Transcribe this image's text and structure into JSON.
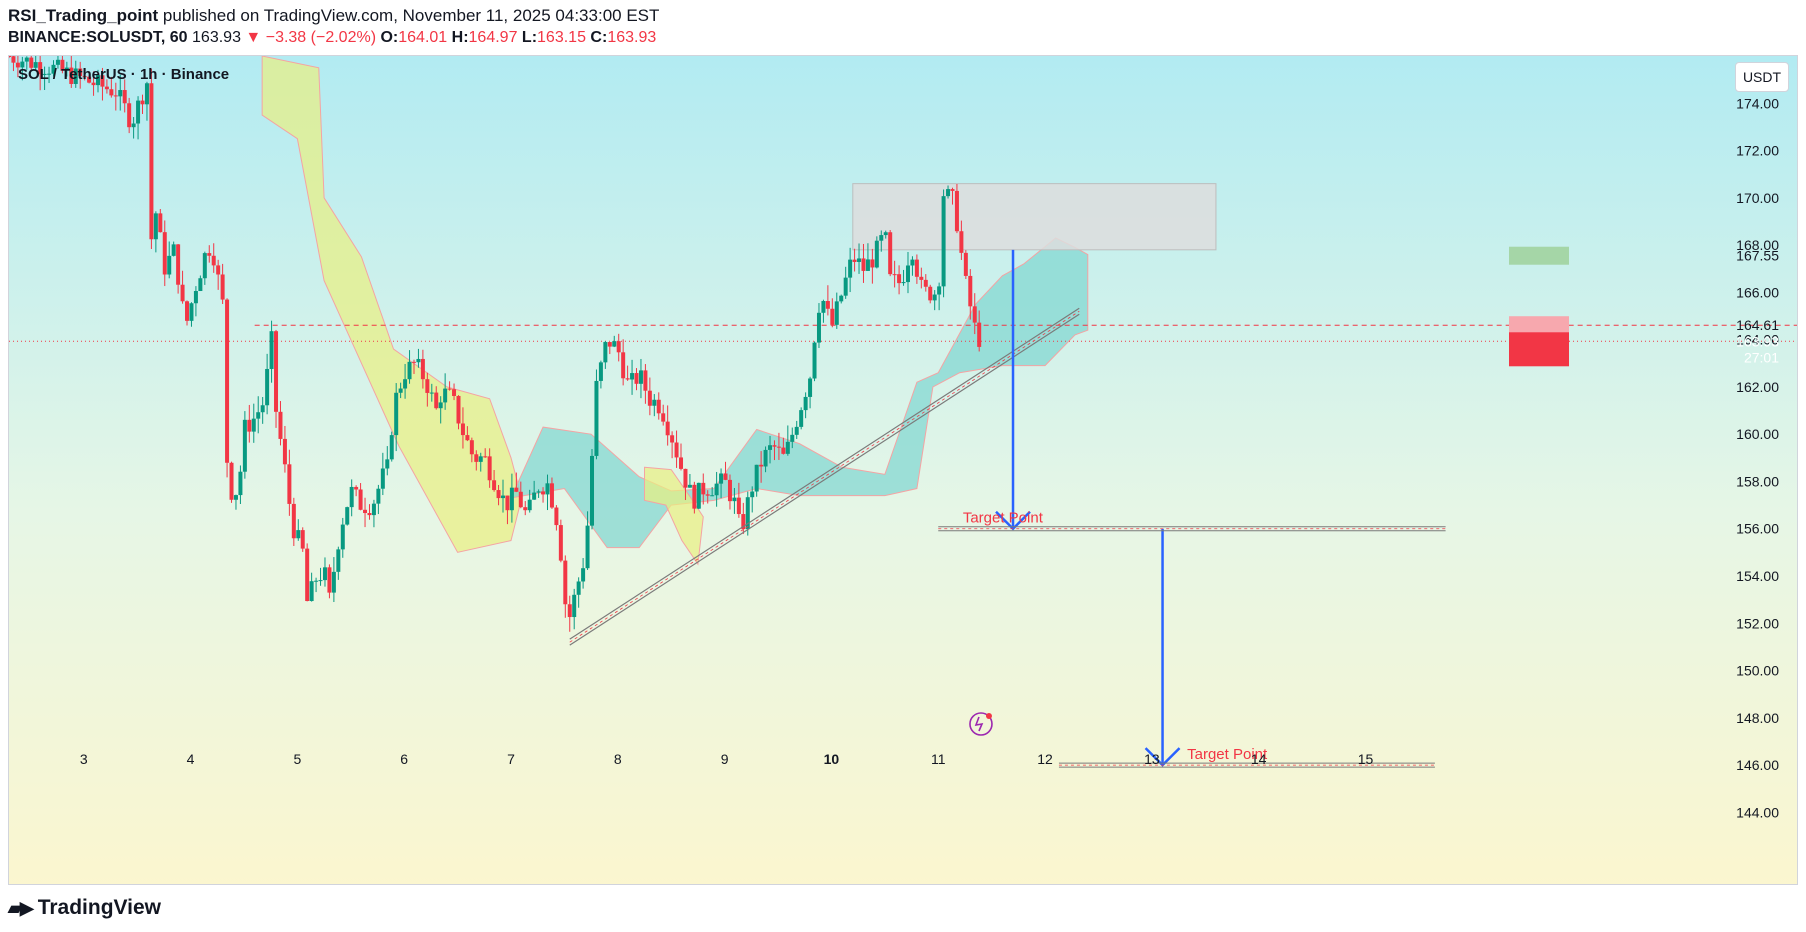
{
  "header": {
    "author": "RSI_Trading_point",
    "published": "published on TradingView.com, November 11, 2025 04:33:00 EST",
    "symbol_line": "BINANCE:SOLUSDT, 60",
    "last": "163.93",
    "change": "−3.38 (−2.02%)",
    "o_label": "O:",
    "o": "164.01",
    "h_label": "H:",
    "h": "164.97",
    "l_label": "L:",
    "l": "163.15",
    "c_label": "C:",
    "c": "163.93"
  },
  "legend": {
    "title": "SOL / TetherUS · 1h · Binance"
  },
  "unit_button": "USDT",
  "footer": {
    "brand": "TradingView"
  },
  "colors": {
    "up": "#089981",
    "down": "#f23645",
    "arrow": "#2962ff",
    "target_text": "#f23645",
    "cloud_bull": "#7fd6d0",
    "cloud_bear": "#e9ef80",
    "price_label_bg": "#f23645",
    "green_label_bg": "#a5d6a7"
  },
  "chart_data": {
    "type": "candlestick",
    "y_range": [
      143,
      176
    ],
    "x_range": [
      2.3,
      16.25
    ],
    "y_ticks": [
      144,
      146,
      148,
      150,
      152,
      154,
      156,
      158,
      160,
      162,
      164,
      166,
      168,
      170,
      172,
      174
    ],
    "x_ticks": [
      {
        "x": 3,
        "label": "3"
      },
      {
        "x": 4,
        "label": "4"
      },
      {
        "x": 5,
        "label": "5"
      },
      {
        "x": 6,
        "label": "6"
      },
      {
        "x": 7,
        "label": "7"
      },
      {
        "x": 8,
        "label": "8"
      },
      {
        "x": 9,
        "label": "9"
      },
      {
        "x": 10,
        "label": "10"
      },
      {
        "x": 11,
        "label": "11"
      },
      {
        "x": 12,
        "label": "12"
      },
      {
        "x": 13,
        "label": "13"
      },
      {
        "x": 14,
        "label": "14"
      },
      {
        "x": 15,
        "label": "15"
      }
    ],
    "price_labels": [
      {
        "value": 167.55,
        "text": "167.55",
        "kind": "green"
      },
      {
        "value": 164.61,
        "text": "164.61",
        "kind": "pink"
      },
      {
        "value": 163.93,
        "text": "163.93",
        "sub": "27:01",
        "kind": "red"
      }
    ],
    "resistance_zone": {
      "x0": 10.2,
      "x1": 13.6,
      "y0": 167.8,
      "y1": 170.6
    },
    "trendline": {
      "x0": 7.55,
      "y0": 151.2,
      "x1": 12.32,
      "y1": 165.2
    },
    "dashed_level": 164.61,
    "current_price": 163.93,
    "targets": [
      {
        "x0": 11.0,
        "x1": 15.75,
        "y": 156.0,
        "label": "Target Point",
        "label_x": 11.23
      },
      {
        "x0": 12.13,
        "x1": 15.65,
        "y": 146.0,
        "label": "Target Point",
        "label_x": 13.33
      }
    ],
    "arrows": [
      {
        "x": 11.7,
        "y_from": 167.8,
        "y_to": 156.0
      },
      {
        "x": 13.1,
        "y_from": 156.0,
        "y_to": 146.0
      }
    ],
    "cloud_bear_upper": [
      [
        4.67,
        176
      ],
      [
        5.2,
        175.5
      ],
      [
        5.25,
        170
      ],
      [
        5.6,
        167.5
      ],
      [
        5.9,
        163.6
      ],
      [
        6.4,
        162
      ],
      [
        6.8,
        161.5
      ],
      [
        7.0,
        159
      ],
      [
        7.1,
        157.3
      ]
    ],
    "cloud_bear_lower": [
      [
        4.67,
        173.5
      ],
      [
        5.0,
        172.5
      ],
      [
        5.25,
        166.5
      ],
      [
        5.6,
        163
      ],
      [
        5.95,
        159.5
      ],
      [
        6.5,
        155
      ],
      [
        7.0,
        155.5
      ],
      [
        7.1,
        157.3
      ]
    ],
    "cloud_bull_upper": [
      [
        7.0,
        157.3
      ],
      [
        7.3,
        160.3
      ],
      [
        7.75,
        160
      ],
      [
        8.2,
        158.2
      ],
      [
        8.5,
        157.6
      ],
      [
        8.9,
        157.7
      ],
      [
        9.3,
        160.2
      ],
      [
        9.7,
        159.6
      ],
      [
        10.1,
        158.6
      ],
      [
        10.5,
        158.3
      ],
      [
        10.8,
        162.2
      ],
      [
        11.0,
        162.6
      ],
      [
        11.35,
        165.5
      ],
      [
        11.6,
        166.7
      ],
      [
        11.8,
        167.2
      ],
      [
        12.1,
        168.3
      ],
      [
        12.28,
        167.9
      ],
      [
        12.4,
        167.6
      ]
    ],
    "cloud_bull_lower": [
      [
        7.0,
        157.3
      ],
      [
        7.5,
        157.7
      ],
      [
        7.9,
        155.2
      ],
      [
        8.2,
        155.2
      ],
      [
        8.5,
        157.0
      ],
      [
        8.9,
        157.2
      ],
      [
        9.3,
        157.7
      ],
      [
        9.7,
        157.4
      ],
      [
        10.1,
        157.4
      ],
      [
        10.5,
        157.4
      ],
      [
        10.8,
        157.7
      ],
      [
        10.95,
        162.0
      ],
      [
        11.2,
        162.6
      ],
      [
        11.6,
        162.9
      ],
      [
        12.0,
        162.9
      ],
      [
        12.28,
        164.2
      ],
      [
        12.4,
        164.4
      ]
    ],
    "cloud_bear2_upper": [
      [
        8.25,
        158.6
      ],
      [
        8.5,
        158.5
      ],
      [
        8.7,
        157.2
      ],
      [
        8.8,
        156.5
      ]
    ],
    "cloud_bear2_lower": [
      [
        8.25,
        157.2
      ],
      [
        8.45,
        157.0
      ],
      [
        8.6,
        155.5
      ],
      [
        8.75,
        154.5
      ],
      [
        8.8,
        156.5
      ]
    ],
    "price_path": [
      [
        2.3,
        176
      ],
      [
        2.7,
        175.5
      ],
      [
        3.0,
        175
      ],
      [
        3.3,
        174.5
      ],
      [
        3.45,
        173.2
      ],
      [
        3.6,
        175.0
      ],
      [
        3.63,
        168.2
      ],
      [
        3.68,
        169.5
      ],
      [
        3.75,
        167
      ],
      [
        3.85,
        167.8
      ],
      [
        3.95,
        164.5
      ],
      [
        4.05,
        166.3
      ],
      [
        4.15,
        167.8
      ],
      [
        4.2,
        168
      ],
      [
        4.3,
        165.5
      ],
      [
        4.35,
        157.6
      ],
      [
        4.45,
        157.6
      ],
      [
        4.5,
        160.2
      ],
      [
        4.6,
        160.7
      ],
      [
        4.7,
        161.5
      ],
      [
        4.75,
        164.5
      ],
      [
        4.8,
        161.0
      ],
      [
        4.9,
        158
      ],
      [
        4.95,
        156.2
      ],
      [
        5.05,
        155.0
      ],
      [
        5.1,
        152.5
      ],
      [
        5.15,
        153.8
      ],
      [
        5.25,
        154.2
      ],
      [
        5.3,
        153.0
      ],
      [
        5.4,
        156.0
      ],
      [
        5.5,
        157.6
      ],
      [
        5.6,
        157.0
      ],
      [
        5.7,
        157.0
      ],
      [
        5.8,
        158.2
      ],
      [
        5.85,
        158.6
      ],
      [
        5.9,
        161.2
      ],
      [
        6.0,
        162.6
      ],
      [
        6.1,
        163.0
      ],
      [
        6.2,
        162.3
      ],
      [
        6.3,
        161.0
      ],
      [
        6.35,
        161.8
      ],
      [
        6.45,
        161.5
      ],
      [
        6.55,
        160.1
      ],
      [
        6.65,
        159.0
      ],
      [
        6.75,
        159.0
      ],
      [
        6.85,
        158.0
      ],
      [
        6.95,
        157.0
      ],
      [
        7.05,
        157.5
      ],
      [
        7.15,
        156.5
      ],
      [
        7.25,
        157.8
      ],
      [
        7.35,
        157.9
      ],
      [
        7.45,
        156.0
      ],
      [
        7.5,
        153.0
      ],
      [
        7.55,
        152.3
      ],
      [
        7.7,
        155.0
      ],
      [
        7.8,
        162.0
      ],
      [
        7.9,
        164.0
      ],
      [
        8.0,
        163.6
      ],
      [
        8.1,
        162.0
      ],
      [
        8.2,
        162.5
      ],
      [
        8.3,
        161.5
      ],
      [
        8.4,
        161.2
      ],
      [
        8.5,
        160.0
      ],
      [
        8.6,
        158.5
      ],
      [
        8.7,
        157.2
      ],
      [
        8.8,
        157.7
      ],
      [
        8.9,
        157.8
      ],
      [
        9.0,
        158.0
      ],
      [
        9.1,
        157.0
      ],
      [
        9.15,
        155.8
      ],
      [
        9.25,
        157.7
      ],
      [
        9.35,
        158.9
      ],
      [
        9.45,
        159.5
      ],
      [
        9.55,
        159.0
      ],
      [
        9.6,
        159.5
      ],
      [
        9.7,
        161.0
      ],
      [
        9.8,
        162.5
      ],
      [
        9.85,
        164.5
      ],
      [
        9.9,
        166.0
      ],
      [
        10.0,
        164.5
      ],
      [
        10.1,
        166.0
      ],
      [
        10.2,
        167.5
      ],
      [
        10.3,
        167.0
      ],
      [
        10.4,
        167.5
      ],
      [
        10.5,
        168.5
      ],
      [
        10.55,
        166.5
      ],
      [
        10.65,
        166.4
      ],
      [
        10.75,
        168.0
      ],
      [
        10.85,
        166.0
      ],
      [
        11.0,
        166.0
      ],
      [
        11.05,
        170.2
      ],
      [
        11.15,
        169.8
      ],
      [
        11.25,
        166.5
      ],
      [
        11.35,
        164.3
      ],
      [
        11.4,
        163.93
      ]
    ],
    "candles_note": "hourly OHLC bars reconstructed to follow price_path"
  }
}
